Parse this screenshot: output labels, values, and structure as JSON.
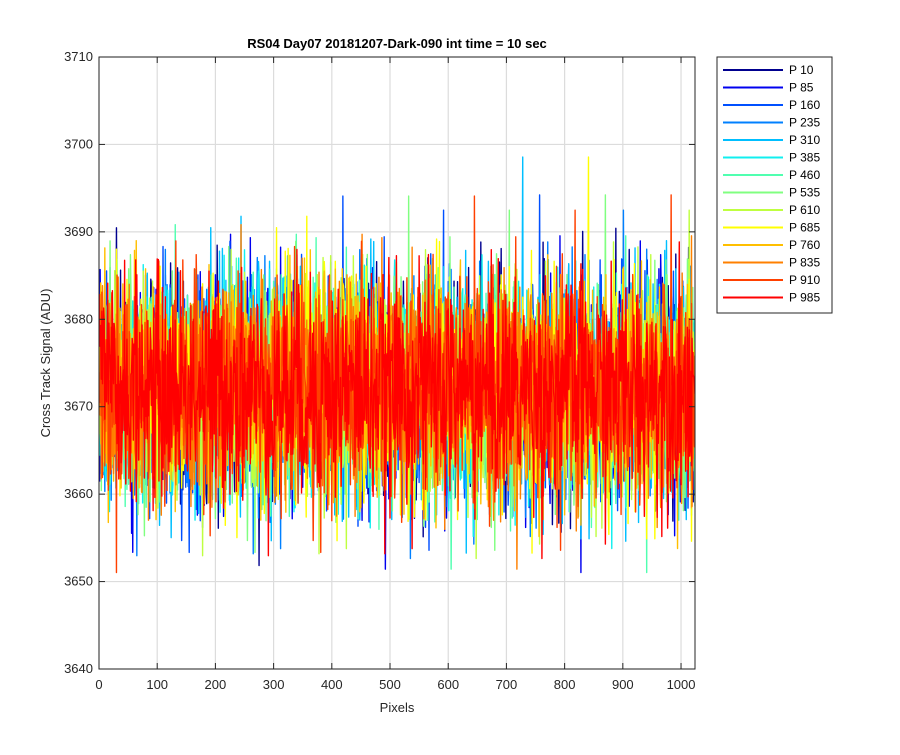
{
  "chart_data": {
    "type": "line",
    "title": "RS04 Day07 20181207-Dark-090 int time = 10 sec",
    "xlabel": "Pixels",
    "ylabel": "Cross Track Signal (ADU)",
    "xlim": [
      0,
      1024
    ],
    "ylim": [
      3640,
      3710
    ],
    "xticks": [
      "0",
      "100",
      "200",
      "300",
      "400",
      "500",
      "600",
      "700",
      "800",
      "900",
      "1000"
    ],
    "yticks": [
      "3640",
      "3650",
      "3660",
      "3670",
      "3680",
      "3690",
      "3700",
      "3710"
    ],
    "grid": true,
    "legend_position": "outside-right",
    "n_points": 1024,
    "series": [
      {
        "name": "P 10",
        "color": "#00008F",
        "mean": 3672,
        "spread": 6.2
      },
      {
        "name": "P 85",
        "color": "#0000EF",
        "mean": 3672,
        "spread": 6.2
      },
      {
        "name": "P 160",
        "color": "#0050FF",
        "mean": 3672,
        "spread": 6.2
      },
      {
        "name": "P 235",
        "color": "#0080FF",
        "mean": 3672,
        "spread": 6.2
      },
      {
        "name": "P 310",
        "color": "#00BFFF",
        "mean": 3672,
        "spread": 6.2
      },
      {
        "name": "P 385",
        "color": "#10EFEF",
        "mean": 3672,
        "spread": 6.2
      },
      {
        "name": "P 460",
        "color": "#50FFB0",
        "mean": 3672,
        "spread": 6.2
      },
      {
        "name": "P 535",
        "color": "#80FF80",
        "mean": 3672,
        "spread": 6.2
      },
      {
        "name": "P 610",
        "color": "#BFFF40",
        "mean": 3672,
        "spread": 6.2
      },
      {
        "name": "P 685",
        "color": "#FFFF00",
        "mean": 3672,
        "spread": 6.2
      },
      {
        "name": "P 760",
        "color": "#FFBF00",
        "mean": 3672,
        "spread": 6.2
      },
      {
        "name": "P 835",
        "color": "#FF8000",
        "mean": 3672,
        "spread": 6.2
      },
      {
        "name": "P 910",
        "color": "#FF4000",
        "mean": 3672,
        "spread": 6.2
      },
      {
        "name": "P 985",
        "color": "#FF0000",
        "mean": 3672,
        "spread": 6.2
      }
    ]
  }
}
